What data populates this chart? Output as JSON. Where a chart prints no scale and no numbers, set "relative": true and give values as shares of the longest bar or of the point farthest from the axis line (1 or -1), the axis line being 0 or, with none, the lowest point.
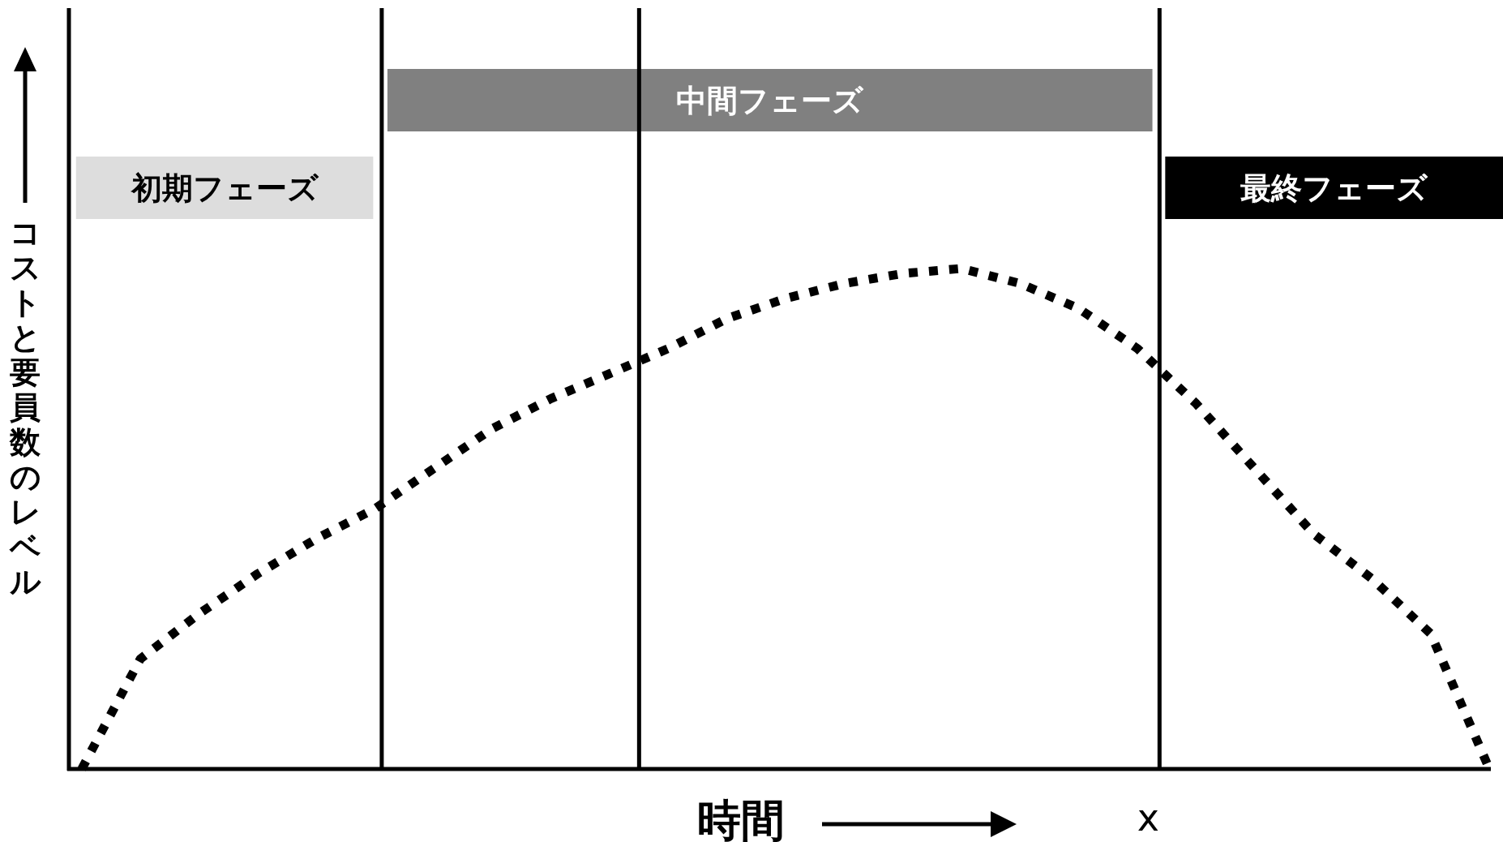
{
  "chart_data": {
    "type": "line",
    "relative": true,
    "xlabel": "時間",
    "ylabel": "コストと要員数のレベル",
    "line_style": "dotted",
    "categories": [
      null,
      null,
      null,
      null,
      null,
      null,
      null,
      null,
      null,
      null,
      null,
      null,
      null,
      null,
      null,
      null,
      null,
      null,
      null,
      null,
      null,
      null,
      null,
      null,
      null
    ],
    "series": [
      {
        "color": "#000000",
        "values": [
          0,
          0.22,
          0.31,
          0.39,
          0.46,
          0.52,
          0.6,
          0.68,
          0.74,
          0.79,
          0.84,
          0.9,
          0.94,
          0.97,
          0.99,
          1,
          0.97,
          0.92,
          0.84,
          0.73,
          0.6,
          0.47,
          0.38,
          0.27,
          0
        ]
      }
    ],
    "annotations": [
      "初期フェーズ",
      "中間フェーズ",
      "最終フェーズ",
      "x"
    ]
  }
}
